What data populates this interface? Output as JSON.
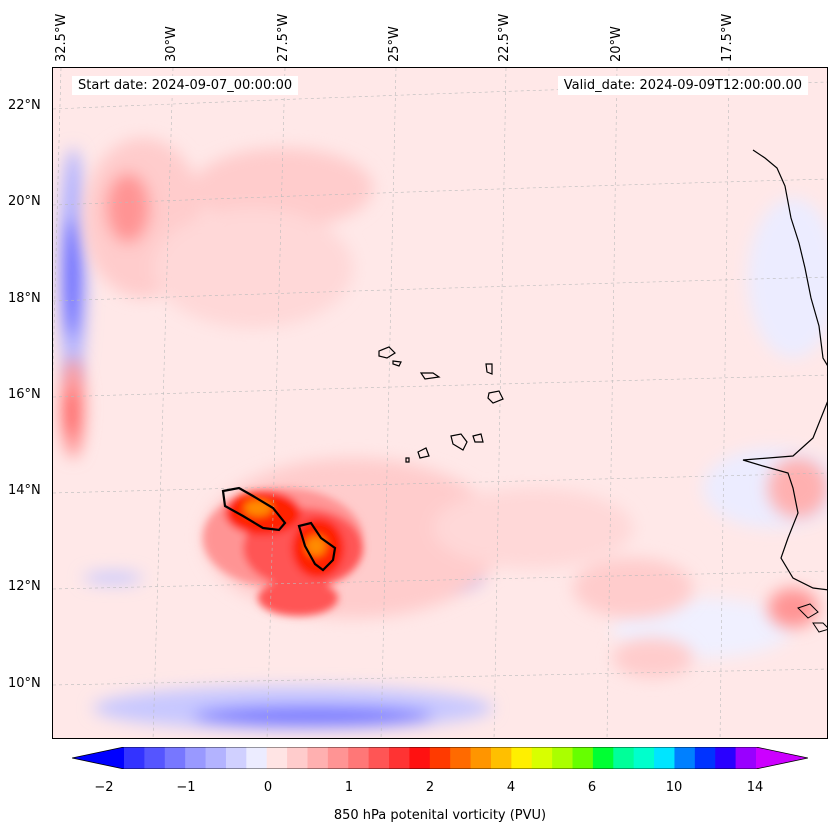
{
  "header": {
    "start_date": "Start date: 2024-09-07_00:00:00",
    "valid_date": "Valid_date: 2024-09-09T12:00:00.00"
  },
  "axes": {
    "longitude_labels": [
      "32.5°W",
      "30°W",
      "27.5°W",
      "25°W",
      "22.5°W",
      "20°W",
      "17.5°W"
    ],
    "latitude_labels": [
      "22°N",
      "20°N",
      "18°N",
      "16°N",
      "14°N",
      "12°N",
      "10°N"
    ]
  },
  "colorbar": {
    "label": "850 hPa potenital vorticity (PVU)",
    "tick_labels": [
      "−2",
      "−1",
      "0",
      "1",
      "2",
      "4",
      "6",
      "10",
      "14"
    ],
    "colors": [
      "#0000ff",
      "#3333ff",
      "#5555ff",
      "#7777ff",
      "#9999ff",
      "#b3b3ff",
      "#d0d0ff",
      "#ececff",
      "#ffe4e4",
      "#ffcccc",
      "#ffb0b0",
      "#ff9494",
      "#ff7777",
      "#ff5555",
      "#ff3333",
      "#ff1111",
      "#ff3a00",
      "#ff6a00",
      "#ff9500",
      "#ffbf00",
      "#ffef00",
      "#d8ff00",
      "#aaff00",
      "#66ff00",
      "#00ff33",
      "#00ff99",
      "#00ffcc",
      "#00e5ff",
      "#0080ff",
      "#0033ff",
      "#2a00ff",
      "#9900ff",
      "#cc00ff"
    ]
  },
  "map": {
    "features": [
      "contour-fill",
      "coastline",
      "cape-verde-islands",
      "gridlines",
      "vorticity-contour"
    ]
  }
}
